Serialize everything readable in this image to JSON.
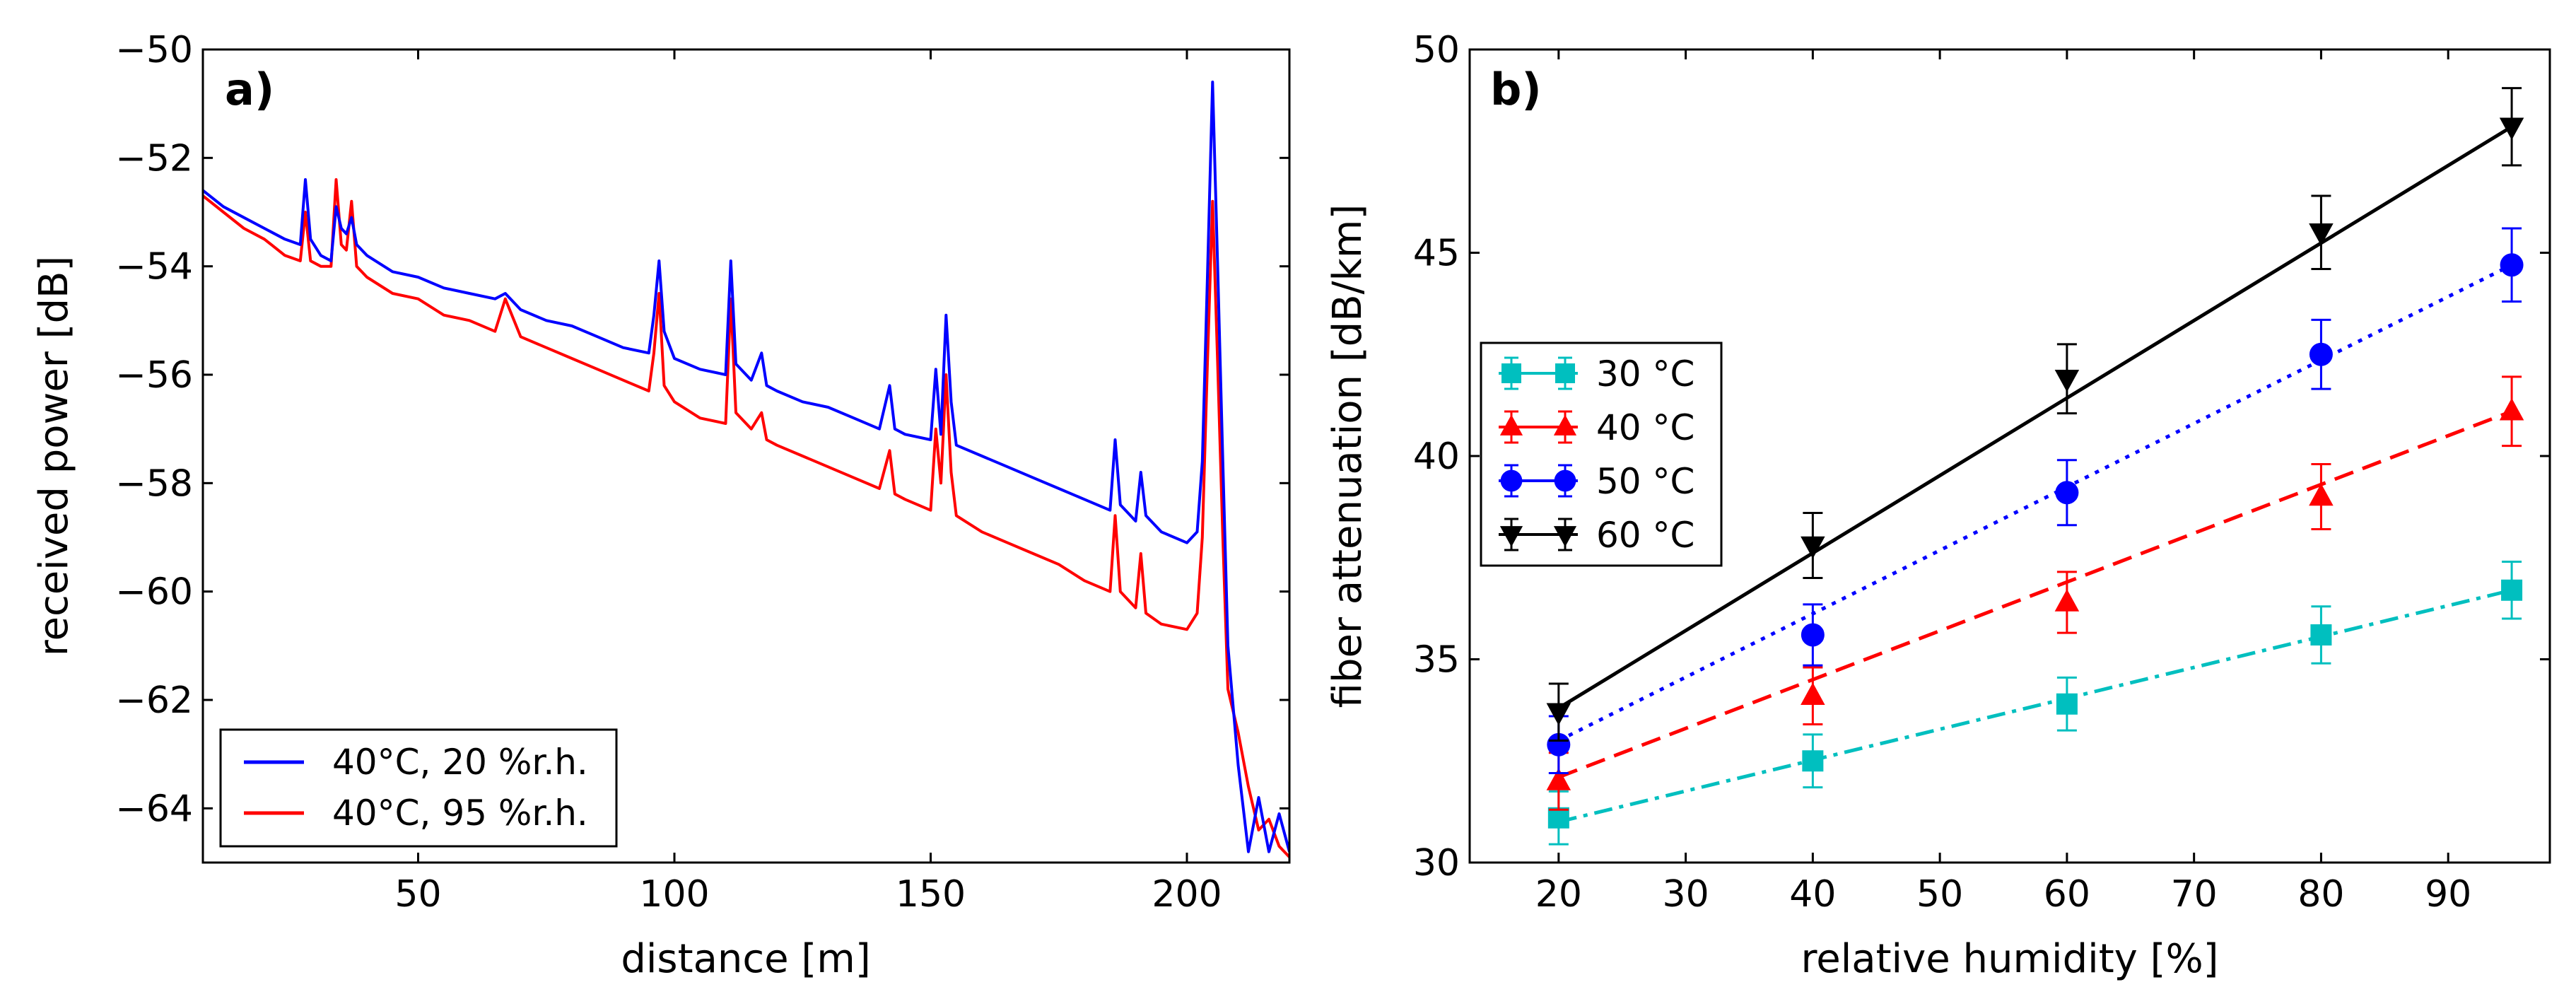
{
  "chart_data": [
    {
      "type": "line",
      "panel_label": "a)",
      "xlabel": "distance [m]",
      "ylabel": "received power [dB]",
      "xlim": [
        8,
        220
      ],
      "ylim": [
        -65,
        -50
      ],
      "xticks": [
        50,
        100,
        150,
        200
      ],
      "yticks": [
        -64,
        -62,
        -60,
        -58,
        -56,
        -54,
        -52,
        -50
      ],
      "xtick_labels": [
        "50",
        "100",
        "150",
        "200"
      ],
      "ytick_labels": [
        "−64",
        "−62",
        "−60",
        "−58",
        "−56",
        "−54",
        "−52",
        "−50"
      ],
      "legend_position": "lower-left",
      "series": [
        {
          "name": "40°C, 20 %r.h.",
          "color": "#0000ff",
          "x": [
            8,
            12,
            16,
            20,
            24,
            27,
            28,
            29,
            31,
            33,
            34,
            35,
            36,
            37,
            38,
            40,
            45,
            50,
            55,
            60,
            65,
            67,
            70,
            75,
            80,
            85,
            90,
            95,
            96,
            97,
            98,
            100,
            105,
            110,
            111,
            112,
            115,
            117,
            118,
            120,
            125,
            130,
            135,
            140,
            142,
            143,
            145,
            150,
            151,
            152,
            153,
            154,
            155,
            160,
            165,
            170,
            175,
            180,
            185,
            186,
            187,
            190,
            191,
            192,
            195,
            200,
            202,
            203,
            204,
            205,
            206,
            207,
            208,
            210,
            212,
            214,
            216,
            218,
            220
          ],
          "y": [
            -52.6,
            -52.9,
            -53.1,
            -53.3,
            -53.5,
            -53.6,
            -52.4,
            -53.5,
            -53.8,
            -53.9,
            -52.9,
            -53.3,
            -53.4,
            -53.1,
            -53.6,
            -53.8,
            -54.1,
            -54.2,
            -54.4,
            -54.5,
            -54.6,
            -54.5,
            -54.8,
            -55.0,
            -55.1,
            -55.3,
            -55.5,
            -55.6,
            -54.9,
            -53.9,
            -55.2,
            -55.7,
            -55.9,
            -56.0,
            -53.9,
            -55.8,
            -56.1,
            -55.6,
            -56.2,
            -56.3,
            -56.5,
            -56.6,
            -56.8,
            -57.0,
            -56.2,
            -57.0,
            -57.1,
            -57.2,
            -55.9,
            -57.1,
            -54.9,
            -56.5,
            -57.3,
            -57.5,
            -57.7,
            -57.9,
            -58.1,
            -58.3,
            -58.5,
            -57.2,
            -58.4,
            -58.7,
            -57.8,
            -58.6,
            -58.9,
            -59.1,
            -58.9,
            -57.6,
            -54.2,
            -50.6,
            -54.0,
            -57.6,
            -61.0,
            -63.2,
            -64.8,
            -63.8,
            -64.8,
            -64.1,
            -64.8
          ]
        },
        {
          "name": "40°C, 95 %r.h.",
          "color": "#ff0000",
          "x": [
            8,
            12,
            16,
            20,
            24,
            27,
            28,
            29,
            31,
            33,
            34,
            35,
            36,
            37,
            38,
            40,
            45,
            50,
            55,
            60,
            65,
            67,
            70,
            75,
            80,
            85,
            90,
            95,
            96,
            97,
            98,
            100,
            105,
            110,
            111,
            112,
            115,
            117,
            118,
            120,
            125,
            130,
            135,
            140,
            142,
            143,
            145,
            150,
            151,
            152,
            153,
            154,
            155,
            160,
            165,
            170,
            175,
            180,
            185,
            186,
            187,
            190,
            191,
            192,
            195,
            200,
            202,
            203,
            204,
            205,
            206,
            207,
            208,
            210,
            212,
            214,
            216,
            218,
            220
          ],
          "y": [
            -52.7,
            -53.0,
            -53.3,
            -53.5,
            -53.8,
            -53.9,
            -53.0,
            -53.9,
            -54.0,
            -54.0,
            -52.4,
            -53.6,
            -53.7,
            -52.8,
            -54.0,
            -54.2,
            -54.5,
            -54.6,
            -54.9,
            -55.0,
            -55.2,
            -54.6,
            -55.3,
            -55.5,
            -55.7,
            -55.9,
            -56.1,
            -56.3,
            -55.6,
            -54.5,
            -56.2,
            -56.5,
            -56.8,
            -56.9,
            -54.6,
            -56.7,
            -57.0,
            -56.7,
            -57.2,
            -57.3,
            -57.5,
            -57.7,
            -57.9,
            -58.1,
            -57.4,
            -58.2,
            -58.3,
            -58.5,
            -57.0,
            -58.0,
            -56.0,
            -57.8,
            -58.6,
            -58.9,
            -59.1,
            -59.3,
            -59.5,
            -59.8,
            -60.0,
            -58.6,
            -60.0,
            -60.3,
            -59.3,
            -60.4,
            -60.6,
            -60.7,
            -60.4,
            -59.0,
            -55.8,
            -52.8,
            -55.8,
            -59.0,
            -61.8,
            -62.6,
            -63.6,
            -64.4,
            -64.2,
            -64.7,
            -64.9
          ]
        }
      ]
    },
    {
      "type": "line",
      "panel_label": "b)",
      "xlabel": "relative humidity [%]",
      "ylabel": "fiber attenuation [dB/km]",
      "xlim": [
        13,
        98
      ],
      "ylim": [
        30,
        50
      ],
      "xticks": [
        20,
        30,
        40,
        50,
        60,
        70,
        80,
        90
      ],
      "yticks": [
        30,
        35,
        40,
        45,
        50
      ],
      "xtick_labels": [
        "20",
        "30",
        "40",
        "50",
        "60",
        "70",
        "80",
        "90"
      ],
      "ytick_labels": [
        "30",
        "35",
        "40",
        "45",
        "50"
      ],
      "legend_position": "center-left",
      "series": [
        {
          "name": "30 °C",
          "color": "#00bfbf",
          "marker": "square",
          "linestyle": "dashdot",
          "x": [
            20,
            40,
            60,
            80,
            95
          ],
          "y": [
            31.1,
            32.5,
            33.9,
            35.6,
            36.7
          ],
          "err": [
            0.65,
            0.65,
            0.65,
            0.7,
            0.7
          ],
          "fit": [
            31.0,
            36.7
          ]
        },
        {
          "name": "40 °C",
          "color": "#ff0000",
          "marker": "triangle-up",
          "linestyle": "dashed",
          "x": [
            20,
            40,
            60,
            80,
            95
          ],
          "y": [
            32.0,
            34.1,
            36.4,
            39.0,
            41.1
          ],
          "err": [
            0.7,
            0.7,
            0.75,
            0.8,
            0.85
          ],
          "fit": [
            32.1,
            41.1
          ]
        },
        {
          "name": "50 °C",
          "color": "#0000ff",
          "marker": "circle",
          "linestyle": "dotted",
          "x": [
            20,
            40,
            60,
            80,
            95
          ],
          "y": [
            32.9,
            35.6,
            39.1,
            42.5,
            44.7
          ],
          "err": [
            0.7,
            0.75,
            0.8,
            0.85,
            0.9
          ],
          "fit": [
            33.0,
            44.7
          ]
        },
        {
          "name": "60 °C",
          "color": "#000000",
          "marker": "triangle-down",
          "linestyle": "solid",
          "x": [
            20,
            40,
            60,
            80,
            95
          ],
          "y": [
            33.7,
            37.8,
            41.9,
            45.5,
            48.1
          ],
          "err": [
            0.7,
            0.8,
            0.85,
            0.9,
            0.95
          ],
          "fit": [
            33.8,
            48.1
          ]
        }
      ]
    }
  ]
}
